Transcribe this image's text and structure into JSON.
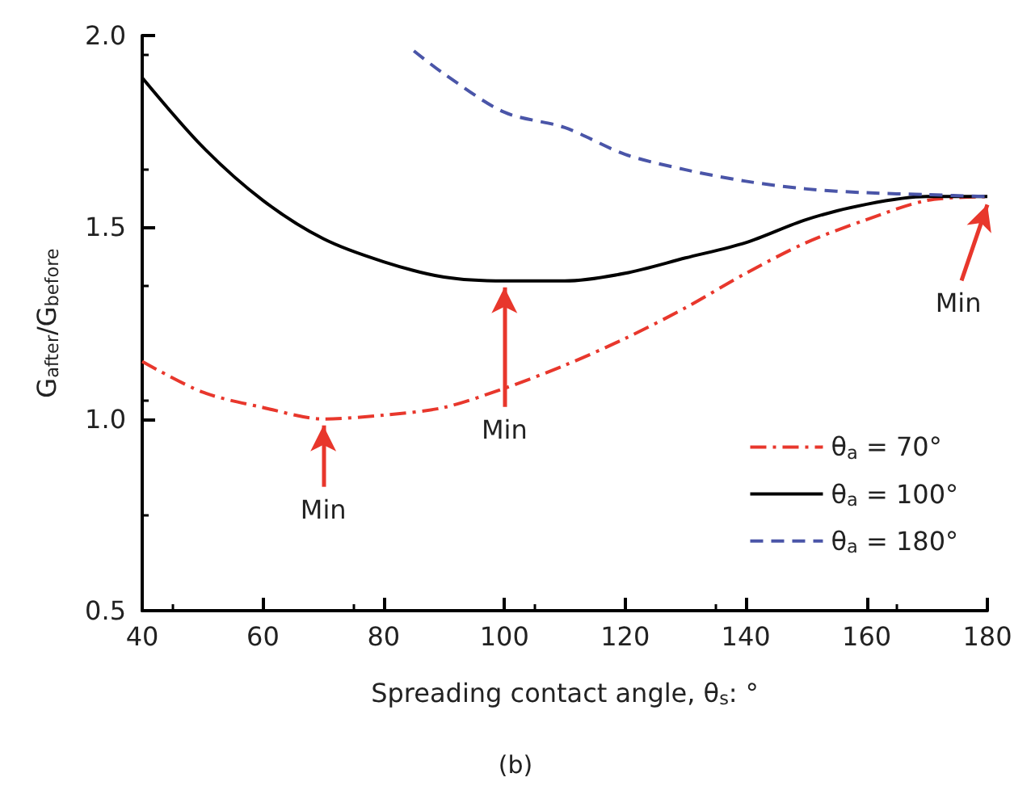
{
  "chart_data": {
    "type": "line",
    "xlabel": "Spreading contact angle, θ$_{s}$: °",
    "ylabel": "G$_{after}$/G$_{before}$",
    "xlim": [
      40,
      180
    ],
    "xticks": [
      40,
      60,
      80,
      100,
      120,
      140,
      160,
      180
    ],
    "ylim": [
      0.5,
      2.0
    ],
    "yticks": [
      {
        "value": 0.5,
        "label": "0.5"
      },
      {
        "value": 1.0,
        "label": "1.0"
      },
      {
        "value": 1.5,
        "label": "1.5"
      },
      {
        "value": 2.0,
        "label": "2.0"
      }
    ],
    "grid": false,
    "legend": "bottom right",
    "marker": "none",
    "series": [
      {
        "name": "θ$_{a}$ = 70°",
        "color": "#e8372c",
        "line_style": "dashdot",
        "x": [
          40,
          50,
          60,
          70,
          80,
          90,
          100,
          110,
          120,
          130,
          140,
          150,
          160,
          170,
          180
        ],
        "values": [
          1.15,
          1.07,
          1.03,
          1.0,
          1.01,
          1.03,
          1.08,
          1.14,
          1.21,
          1.29,
          1.38,
          1.46,
          1.52,
          1.57,
          1.58
        ]
      },
      {
        "name": "θ$_{a}$ = 100°",
        "color": "#000000",
        "line_style": "solid",
        "x": [
          40,
          50,
          60,
          70,
          80,
          90,
          100,
          110,
          120,
          130,
          140,
          150,
          160,
          170,
          180
        ],
        "values": [
          1.89,
          1.71,
          1.57,
          1.47,
          1.41,
          1.37,
          1.36,
          1.36,
          1.38,
          1.42,
          1.46,
          1.52,
          1.56,
          1.58,
          1.58
        ]
      },
      {
        "name": "θ$_{a}$ = 180°",
        "color": "#4a55a8",
        "line_style": "dashed",
        "x": [
          85,
          90,
          100,
          110,
          120,
          130,
          140,
          150,
          160,
          170,
          180
        ],
        "values": [
          1.96,
          1.9,
          1.8,
          1.76,
          1.69,
          1.65,
          1.62,
          1.6,
          1.59,
          1.585,
          1.58
        ]
      }
    ],
    "annotations": [
      {
        "text": "Min",
        "x": 70,
        "y": 1.0
      },
      {
        "text": "Min",
        "x": 100,
        "y": 1.36
      },
      {
        "text": "Min",
        "x": 180,
        "y": 1.58
      },
      "(b)"
    ]
  }
}
